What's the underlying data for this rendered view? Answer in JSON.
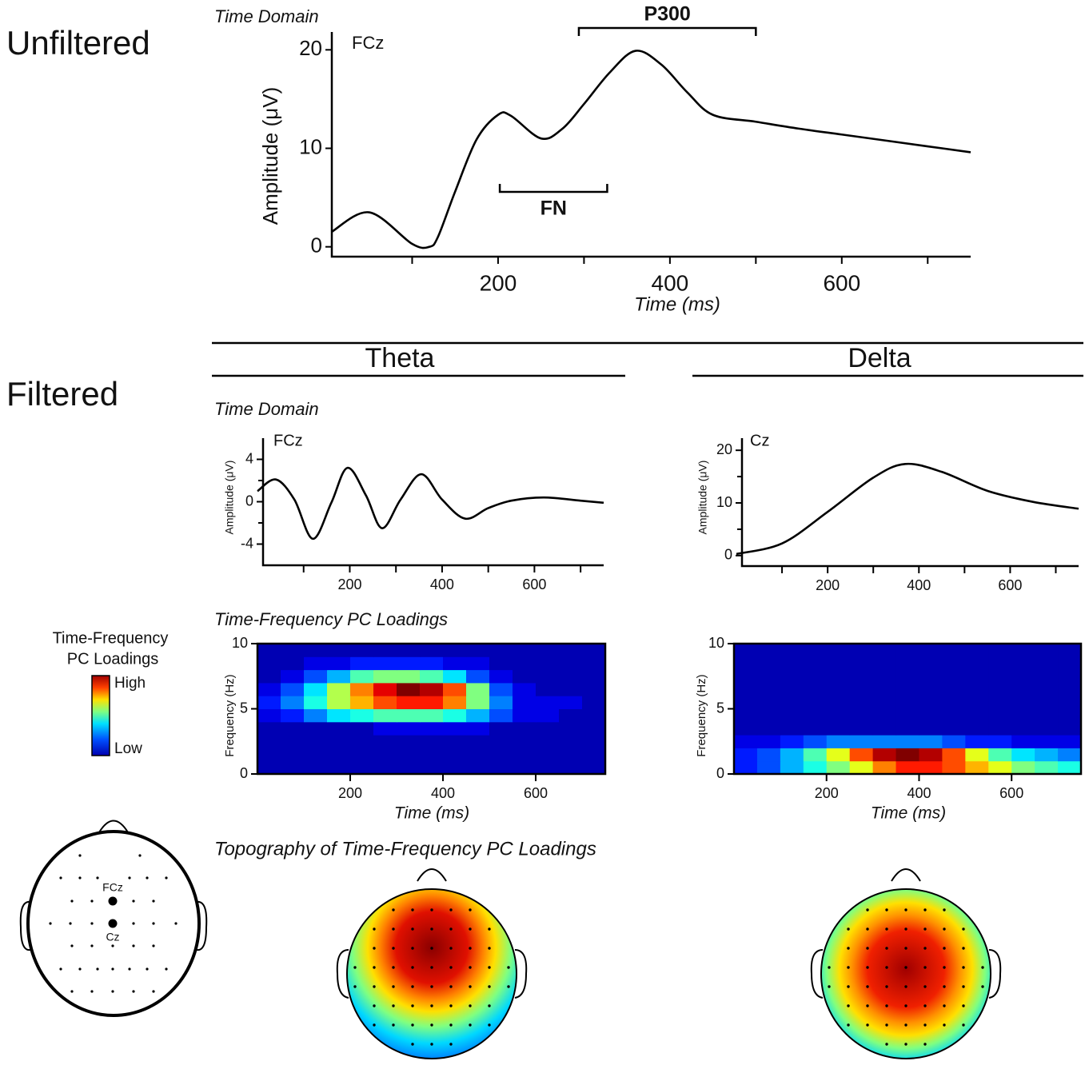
{
  "labels": {
    "unfiltered": "Unfiltered",
    "filtered": "Filtered",
    "theta": "Theta",
    "delta": "Delta",
    "topography": "Topography of Time-Frequency PC Loadings",
    "montage_fcz": "FCz",
    "montage_cz": "Cz"
  },
  "colorbar": {
    "title": [
      "Time-Frequency",
      "PC Loadings"
    ],
    "high": "High",
    "low": "Low"
  },
  "chart_data": [
    {
      "type": "line",
      "subtitle": "Time Domain",
      "annotation": "FCz",
      "xlabel": "Time (ms)",
      "ylabel": "Amplitude (μV)",
      "x": [
        6,
        50,
        100,
        120,
        130,
        150,
        175,
        200,
        215,
        250,
        275,
        300,
        330,
        360,
        390,
        420,
        450,
        500,
        550,
        600,
        650,
        700,
        750
      ],
      "y": [
        1.5,
        3.5,
        0.3,
        0,
        1,
        5.6,
        10.9,
        13.4,
        13.3,
        11,
        12,
        14.5,
        17.7,
        19.9,
        18.5,
        15.7,
        13.4,
        12.7,
        12,
        11.4,
        10.8,
        10.2,
        9.6
      ],
      "color": "#000000",
      "xlim": [
        0,
        750
      ],
      "ylim": [
        -1,
        21
      ],
      "xticks": [
        200,
        400,
        600
      ],
      "xminorticks": [
        100,
        300,
        500,
        700
      ],
      "yticks": [
        0,
        10,
        20
      ],
      "brackets": [
        {
          "text": "P300",
          "x": [
            294,
            500
          ],
          "side": "above"
        },
        {
          "text": "FN",
          "x": [
            202,
            327
          ],
          "side": "below"
        }
      ]
    },
    {
      "type": "line",
      "subtitle": "Time Domain",
      "annotation": "FCz",
      "ylabel": "Amplitude (μV)",
      "x": [
        0,
        40,
        80,
        120,
        160,
        195,
        235,
        270,
        310,
        355,
        400,
        450,
        500,
        550,
        620,
        700,
        750
      ],
      "y": [
        1,
        2.1,
        0.2,
        -3.5,
        -0.1,
        3.2,
        0.6,
        -2.5,
        0.2,
        2.6,
        0.2,
        -1.6,
        -0.6,
        0.1,
        0.4,
        0.1,
        -0.1
      ],
      "color": "#000000",
      "xlim": [
        0,
        750
      ],
      "ylim": [
        -6,
        6
      ],
      "xticks": [
        200,
        400,
        600
      ],
      "xminorticks": [
        100,
        300,
        500,
        700
      ],
      "yticks": [
        -4,
        0,
        4
      ],
      "yminorticks": [
        -2,
        2
      ]
    },
    {
      "type": "line",
      "annotation": "Cz",
      "ylabel": "Amplitude (μV)",
      "x": [
        0,
        100,
        200,
        300,
        370,
        450,
        550,
        650,
        750
      ],
      "y": [
        0.3,
        2.3,
        8.3,
        14.8,
        17.4,
        15.9,
        12.3,
        10.2,
        8.9
      ],
      "color": "#000000",
      "xlim": [
        0,
        750
      ],
      "ylim": [
        -2,
        22
      ],
      "xticks": [
        200,
        400,
        600
      ],
      "xminorticks": [
        100,
        300,
        500,
        700
      ],
      "yticks": [
        0,
        10,
        20
      ],
      "yminorticks": [
        5,
        15
      ]
    },
    {
      "type": "heatmap",
      "subtitle": "Time-Frequency PC Loadings",
      "xlabel": "Time (ms)",
      "ylabel": "Frequency (Hz)",
      "colormap": "jet",
      "xlim": [
        0,
        750
      ],
      "ylim": [
        0,
        10
      ],
      "xticks": [
        200,
        400,
        600
      ],
      "yticks": [
        0,
        5,
        10
      ],
      "z": [
        [
          0.05,
          0.05,
          0.05,
          0.05,
          0.05,
          0.05,
          0.05,
          0.05,
          0.05,
          0.05,
          0.05,
          0.05,
          0.05,
          0.05,
          0.05
        ],
        [
          0.05,
          0.05,
          0.05,
          0.05,
          0.05,
          0.05,
          0.05,
          0.05,
          0.05,
          0.05,
          0.05,
          0.05,
          0.05,
          0.05,
          0.05
        ],
        [
          0.05,
          0.05,
          0.05,
          0.05,
          0.05,
          0.05,
          0.05,
          0.05,
          0.05,
          0.05,
          0.05,
          0.05,
          0.05,
          0.05,
          0.05
        ],
        [
          0.05,
          0.05,
          0.05,
          0.05,
          0.05,
          0.1,
          0.1,
          0.1,
          0.1,
          0.1,
          0.05,
          0.05,
          0.05,
          0.05,
          0.05
        ],
        [
          0.1,
          0.15,
          0.25,
          0.35,
          0.4,
          0.45,
          0.45,
          0.45,
          0.4,
          0.3,
          0.2,
          0.1,
          0.1,
          0.05,
          0.05
        ],
        [
          0.15,
          0.25,
          0.4,
          0.55,
          0.7,
          0.8,
          0.85,
          0.85,
          0.75,
          0.5,
          0.25,
          0.1,
          0.1,
          0.1,
          0.05
        ],
        [
          0.1,
          0.2,
          0.35,
          0.55,
          0.75,
          0.9,
          1,
          0.95,
          0.8,
          0.5,
          0.2,
          0.1,
          0.05,
          0.05,
          0.05
        ],
        [
          0.05,
          0.1,
          0.2,
          0.3,
          0.45,
          0.5,
          0.5,
          0.45,
          0.35,
          0.2,
          0.1,
          0.05,
          0.05,
          0.05,
          0.05
        ],
        [
          0.05,
          0.05,
          0.1,
          0.1,
          0.15,
          0.15,
          0.15,
          0.15,
          0.1,
          0.1,
          0.05,
          0.05,
          0.05,
          0.05,
          0.05
        ],
        [
          0.05,
          0.05,
          0.05,
          0.05,
          0.05,
          0.05,
          0.05,
          0.05,
          0.05,
          0.05,
          0.05,
          0.05,
          0.05,
          0.05,
          0.05
        ]
      ]
    },
    {
      "type": "heatmap",
      "xlabel": "Time (ms)",
      "ylabel": "Frequency (Hz)",
      "colormap": "jet",
      "xlim": [
        0,
        750
      ],
      "ylim": [
        0,
        10
      ],
      "xticks": [
        200,
        400,
        600
      ],
      "yticks": [
        0,
        5,
        10
      ],
      "z": [
        [
          0.15,
          0.2,
          0.3,
          0.4,
          0.5,
          0.6,
          0.75,
          0.85,
          0.85,
          0.8,
          0.7,
          0.6,
          0.5,
          0.45,
          0.4
        ],
        [
          0.15,
          0.2,
          0.3,
          0.45,
          0.6,
          0.8,
          0.95,
          1,
          0.95,
          0.8,
          0.6,
          0.45,
          0.35,
          0.3,
          0.25
        ],
        [
          0.1,
          0.1,
          0.15,
          0.2,
          0.25,
          0.25,
          0.25,
          0.25,
          0.25,
          0.2,
          0.15,
          0.15,
          0.1,
          0.1,
          0.1
        ],
        [
          0.05,
          0.05,
          0.05,
          0.05,
          0.05,
          0.05,
          0.05,
          0.05,
          0.05,
          0.05,
          0.05,
          0.05,
          0.05,
          0.05,
          0.05
        ],
        [
          0.05,
          0.05,
          0.05,
          0.05,
          0.05,
          0.05,
          0.05,
          0.05,
          0.05,
          0.05,
          0.05,
          0.05,
          0.05,
          0.05,
          0.05
        ],
        [
          0.05,
          0.05,
          0.05,
          0.05,
          0.05,
          0.05,
          0.05,
          0.05,
          0.05,
          0.05,
          0.05,
          0.05,
          0.05,
          0.05,
          0.05
        ],
        [
          0.05,
          0.05,
          0.05,
          0.05,
          0.05,
          0.05,
          0.05,
          0.05,
          0.05,
          0.05,
          0.05,
          0.05,
          0.05,
          0.05,
          0.05
        ],
        [
          0.05,
          0.05,
          0.05,
          0.05,
          0.05,
          0.05,
          0.05,
          0.05,
          0.05,
          0.05,
          0.05,
          0.05,
          0.05,
          0.05,
          0.05
        ],
        [
          0.05,
          0.05,
          0.05,
          0.05,
          0.05,
          0.05,
          0.05,
          0.05,
          0.05,
          0.05,
          0.05,
          0.05,
          0.05,
          0.05,
          0.05
        ],
        [
          0.05,
          0.05,
          0.05,
          0.05,
          0.05,
          0.05,
          0.05,
          0.05,
          0.05,
          0.05,
          0.05,
          0.05,
          0.05,
          0.05,
          0.05
        ]
      ]
    }
  ]
}
